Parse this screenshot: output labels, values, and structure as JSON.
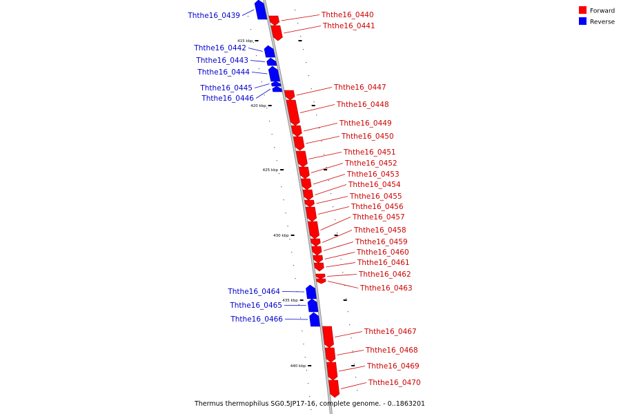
{
  "legend": {
    "forward_label": "Forward",
    "reverse_label": "Reverse",
    "forward_color": "#ff0000",
    "reverse_color": "#0000ff"
  },
  "caption": "Thermus thermophilus SG0.5JP17-16, complete genome. - 0..1863201",
  "ticks": [
    {
      "label": "415 kbp"
    },
    {
      "label": "420 kbp"
    },
    {
      "label": "425 kbp"
    },
    {
      "label": "430 kbp"
    },
    {
      "label": "435 kbp"
    },
    {
      "label": "440 kbp"
    }
  ],
  "genes": [
    {
      "name": "Ththe16_0439",
      "strand": "reverse"
    },
    {
      "name": "Ththe16_0440",
      "strand": "forward"
    },
    {
      "name": "Ththe16_0441",
      "strand": "forward"
    },
    {
      "name": "Ththe16_0442",
      "strand": "reverse"
    },
    {
      "name": "Ththe16_0443",
      "strand": "reverse"
    },
    {
      "name": "Ththe16_0444",
      "strand": "reverse"
    },
    {
      "name": "Ththe16_0445",
      "strand": "reverse"
    },
    {
      "name": "Ththe16_0446",
      "strand": "reverse"
    },
    {
      "name": "Ththe16_0447",
      "strand": "forward"
    },
    {
      "name": "Ththe16_0448",
      "strand": "forward"
    },
    {
      "name": "Ththe16_0449",
      "strand": "forward"
    },
    {
      "name": "Ththe16_0450",
      "strand": "forward"
    },
    {
      "name": "Ththe16_0451",
      "strand": "forward"
    },
    {
      "name": "Ththe16_0452",
      "strand": "forward"
    },
    {
      "name": "Ththe16_0453",
      "strand": "forward"
    },
    {
      "name": "Ththe16_0454",
      "strand": "forward"
    },
    {
      "name": "Ththe16_0455",
      "strand": "forward"
    },
    {
      "name": "Ththe16_0456",
      "strand": "forward"
    },
    {
      "name": "Ththe16_0457",
      "strand": "forward"
    },
    {
      "name": "Ththe16_0458",
      "strand": "forward"
    },
    {
      "name": "Ththe16_0459",
      "strand": "forward"
    },
    {
      "name": "Ththe16_0460",
      "strand": "forward"
    },
    {
      "name": "Ththe16_0461",
      "strand": "forward"
    },
    {
      "name": "Ththe16_0462",
      "strand": "forward"
    },
    {
      "name": "Ththe16_0463",
      "strand": "forward"
    },
    {
      "name": "Ththe16_0464",
      "strand": "reverse"
    },
    {
      "name": "Ththe16_0465",
      "strand": "reverse"
    },
    {
      "name": "Ththe16_0466",
      "strand": "reverse"
    },
    {
      "name": "Ththe16_0467",
      "strand": "forward"
    },
    {
      "name": "Ththe16_0468",
      "strand": "forward"
    },
    {
      "name": "Ththe16_0469",
      "strand": "forward"
    },
    {
      "name": "Ththe16_0470",
      "strand": "forward"
    }
  ]
}
